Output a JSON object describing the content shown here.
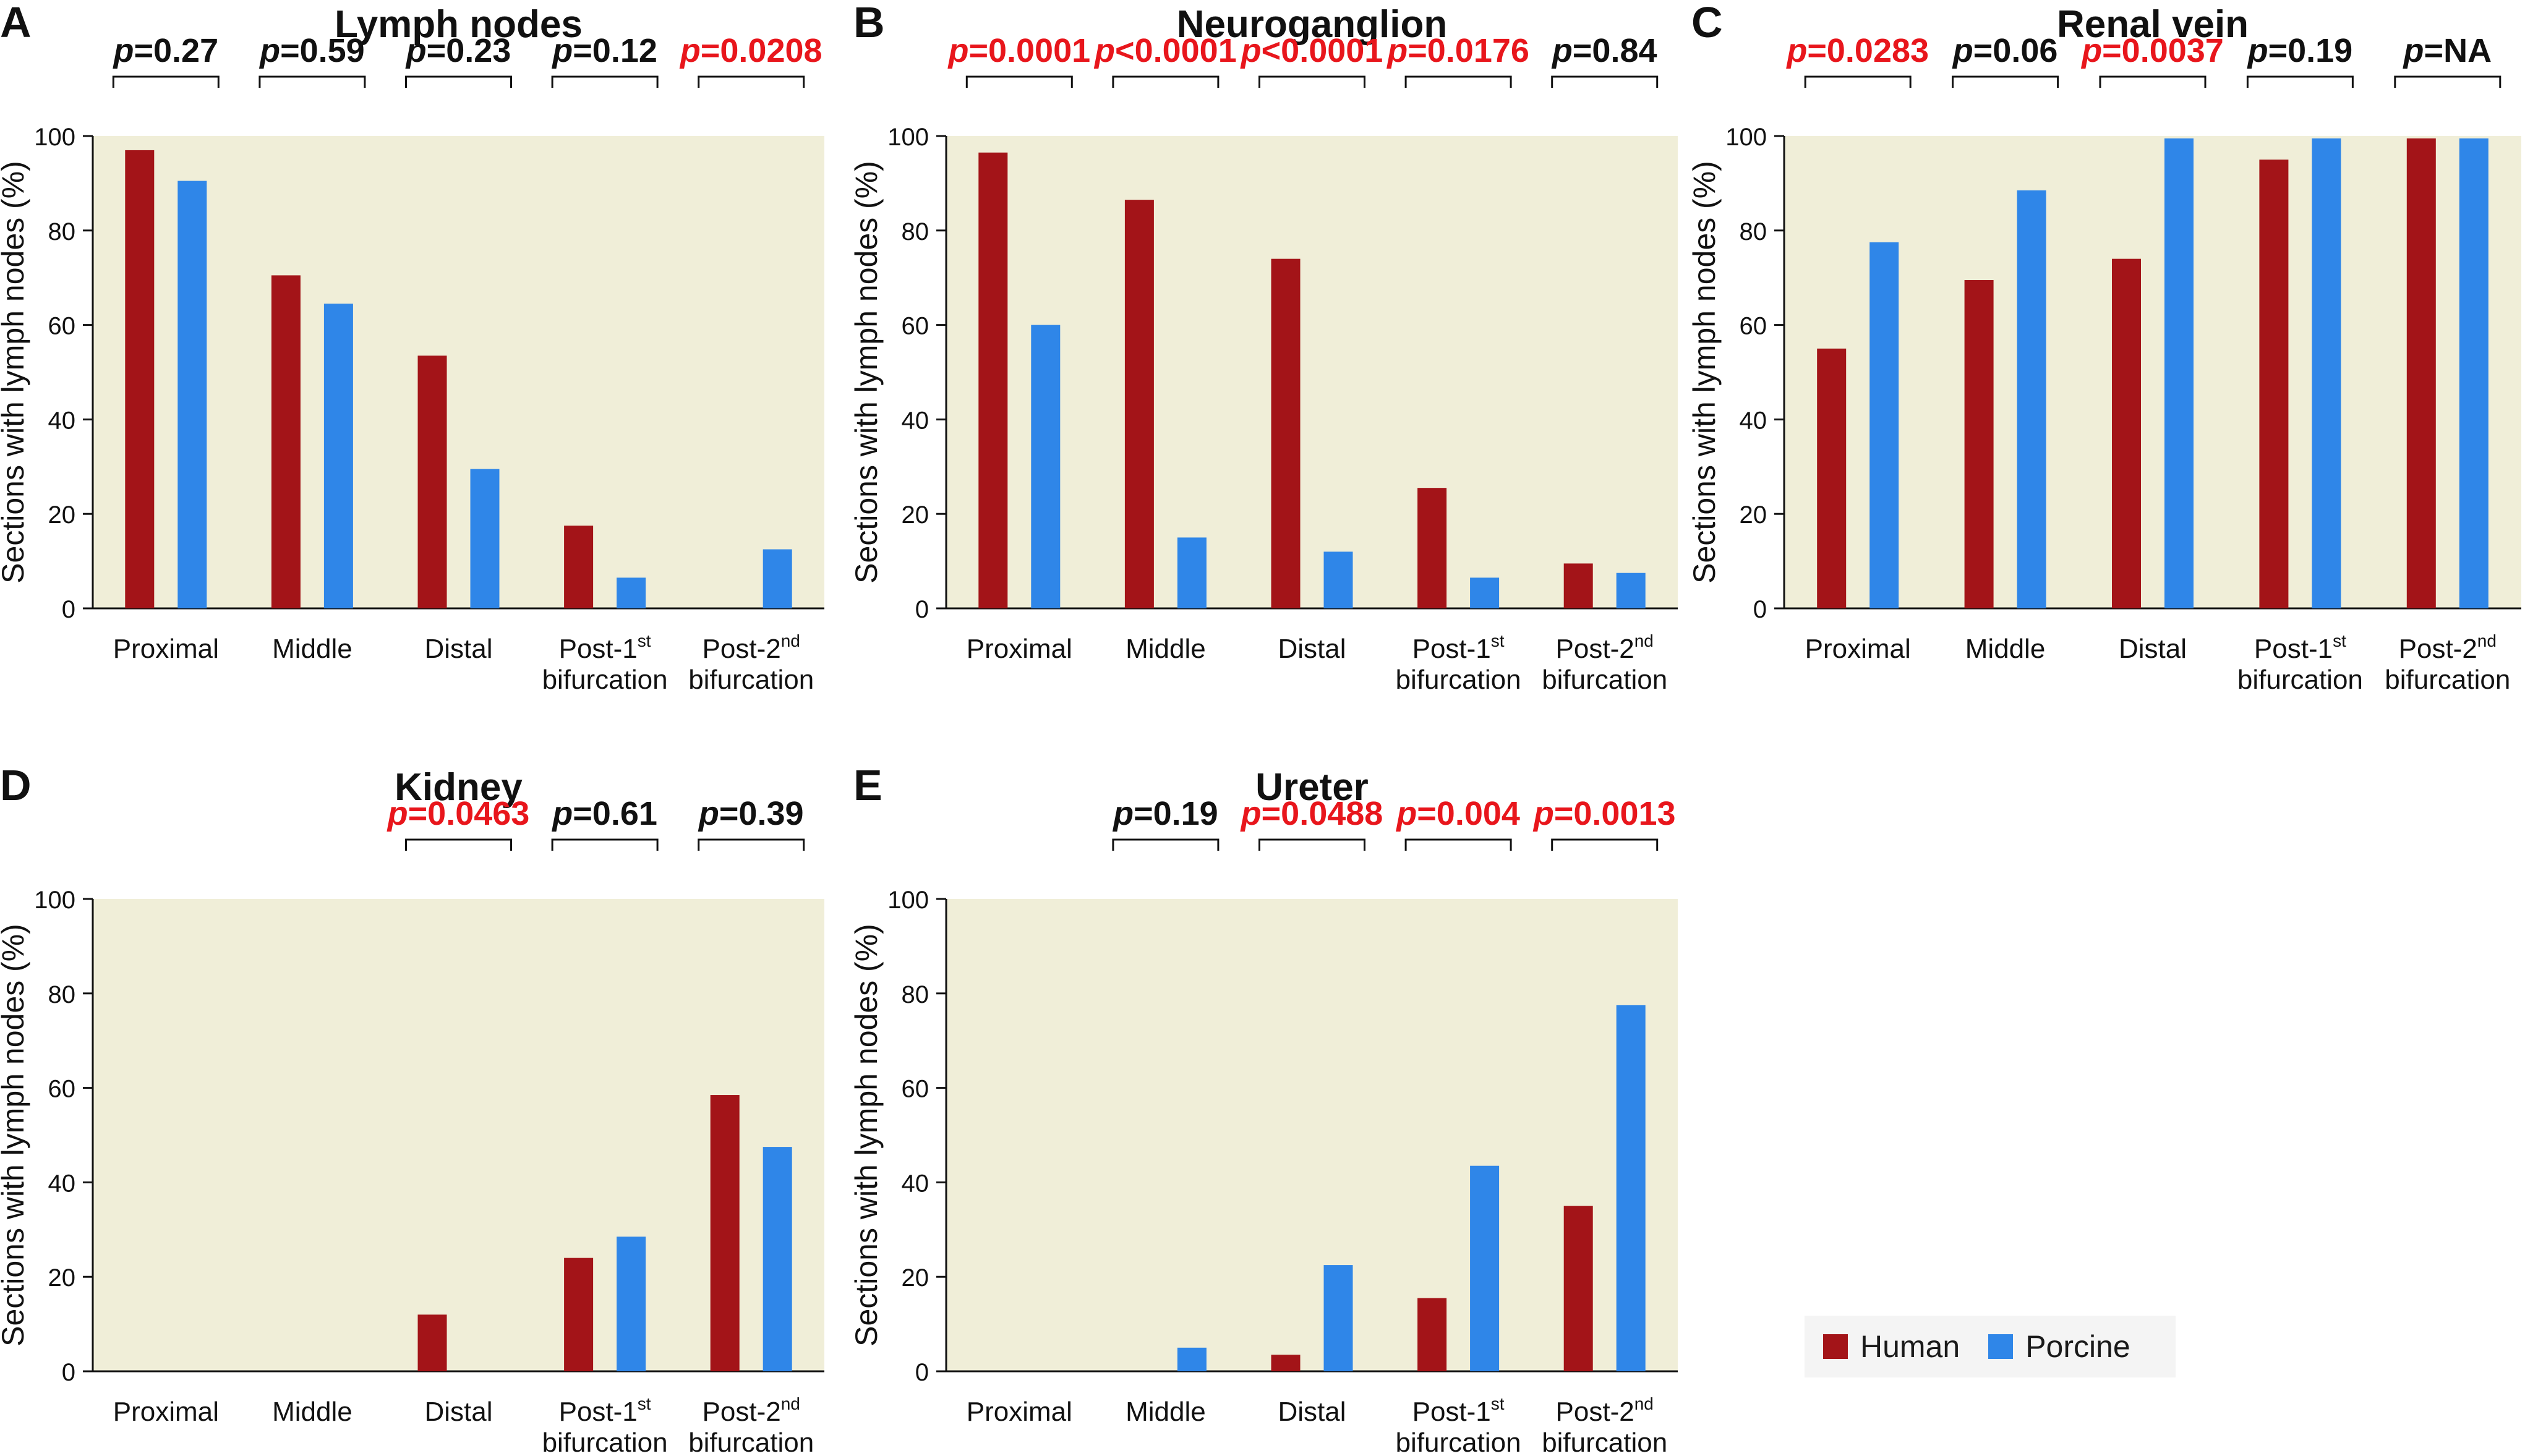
{
  "colors": {
    "human": "#a31418",
    "porcine": "#2f86e8",
    "panel_bg": "#f0eed8",
    "significant_p": "#e8161c",
    "text": "#111111"
  },
  "legend": [
    {
      "label": "Human",
      "color": "#a31418"
    },
    {
      "label": "Porcine",
      "color": "#2f86e8"
    }
  ],
  "chart_data": [
    {
      "panel_letter": "A",
      "title": "Lymph nodes",
      "type": "bar",
      "ylabel": "Sections with lymph nodes (%)",
      "ylim": [
        0,
        100
      ],
      "yticks": [
        "0",
        "20",
        "40",
        "60",
        "80",
        "100"
      ],
      "categories": [
        {
          "line1": "Proximal",
          "line2": "",
          "sup": ""
        },
        {
          "line1": "Middle",
          "line2": "",
          "sup": ""
        },
        {
          "line1": "Distal",
          "line2": "",
          "sup": ""
        },
        {
          "line1": "Post-1",
          "sup": "st",
          "line2": "bifurcation"
        },
        {
          "line1": "Post-2",
          "sup": "nd",
          "line2": "bifurcation"
        }
      ],
      "series": [
        {
          "name": "Human",
          "values": [
            97,
            70.5,
            53.5,
            17.5,
            0
          ]
        },
        {
          "name": "Porcine",
          "values": [
            90.5,
            64.5,
            29.5,
            6.5,
            12.5
          ]
        }
      ],
      "pvalues": [
        {
          "category_index": 0,
          "sign": "=",
          "value": "0.27",
          "significant": false
        },
        {
          "category_index": 1,
          "sign": "=",
          "value": "0.59",
          "significant": false
        },
        {
          "category_index": 2,
          "sign": "=",
          "value": "0.23",
          "significant": false
        },
        {
          "category_index": 3,
          "sign": "=",
          "value": "0.12",
          "significant": false
        },
        {
          "category_index": 4,
          "sign": "=",
          "value": "0.0208",
          "significant": true
        }
      ]
    },
    {
      "panel_letter": "B",
      "title": "Neuroganglion",
      "type": "bar",
      "ylabel": "Sections with lymph nodes (%)",
      "ylim": [
        0,
        100
      ],
      "yticks": [
        "0",
        "20",
        "40",
        "60",
        "80",
        "100"
      ],
      "categories": [
        {
          "line1": "Proximal",
          "line2": "",
          "sup": ""
        },
        {
          "line1": "Middle",
          "line2": "",
          "sup": ""
        },
        {
          "line1": "Distal",
          "line2": "",
          "sup": ""
        },
        {
          "line1": "Post-1",
          "sup": "st",
          "line2": "bifurcation"
        },
        {
          "line1": "Post-2",
          "sup": "nd",
          "line2": "bifurcation"
        }
      ],
      "series": [
        {
          "name": "Human",
          "values": [
            96.5,
            86.5,
            74,
            25.5,
            9.5
          ]
        },
        {
          "name": "Porcine",
          "values": [
            60,
            15,
            12,
            6.5,
            7.5
          ]
        }
      ],
      "pvalues": [
        {
          "category_index": 0,
          "sign": "=",
          "value": "0.0001",
          "significant": true
        },
        {
          "category_index": 1,
          "sign": "<",
          "value": "0.0001",
          "significant": true
        },
        {
          "category_index": 2,
          "sign": "<",
          "value": "0.0001",
          "significant": true
        },
        {
          "category_index": 3,
          "sign": "=",
          "value": "0.0176",
          "significant": true
        },
        {
          "category_index": 4,
          "sign": "=",
          "value": "0.84",
          "significant": false
        }
      ]
    },
    {
      "panel_letter": "C",
      "title": "Renal vein",
      "type": "bar",
      "ylabel": "Sections with lymph nodes (%)",
      "ylim": [
        0,
        100
      ],
      "yticks": [
        "0",
        "20",
        "40",
        "60",
        "80",
        "100"
      ],
      "categories": [
        {
          "line1": "Proximal",
          "line2": "",
          "sup": ""
        },
        {
          "line1": "Middle",
          "line2": "",
          "sup": ""
        },
        {
          "line1": "Distal",
          "line2": "",
          "sup": ""
        },
        {
          "line1": "Post-1",
          "sup": "st",
          "line2": "bifurcation"
        },
        {
          "line1": "Post-2",
          "sup": "nd",
          "line2": "bifurcation"
        }
      ],
      "series": [
        {
          "name": "Human",
          "values": [
            55,
            69.5,
            74,
            95,
            99.5
          ]
        },
        {
          "name": "Porcine",
          "values": [
            77.5,
            88.5,
            99.5,
            99.5,
            99.5
          ]
        }
      ],
      "pvalues": [
        {
          "category_index": 0,
          "sign": "=",
          "value": "0.0283",
          "significant": true
        },
        {
          "category_index": 1,
          "sign": "=",
          "value": "0.06",
          "significant": false
        },
        {
          "category_index": 2,
          "sign": "=",
          "value": "0.0037",
          "significant": true
        },
        {
          "category_index": 3,
          "sign": "=",
          "value": "0.19",
          "significant": false
        },
        {
          "category_index": 4,
          "sign": "=",
          "value": "NA",
          "significant": false
        }
      ]
    },
    {
      "panel_letter": "D",
      "title": "Kidney",
      "type": "bar",
      "ylabel": "Sections with lymph nodes (%)",
      "ylim": [
        0,
        100
      ],
      "yticks": [
        "0",
        "20",
        "40",
        "60",
        "80",
        "100"
      ],
      "categories": [
        {
          "line1": "Proximal",
          "line2": "",
          "sup": ""
        },
        {
          "line1": "Middle",
          "line2": "",
          "sup": ""
        },
        {
          "line1": "Distal",
          "line2": "",
          "sup": ""
        },
        {
          "line1": "Post-1",
          "sup": "st",
          "line2": "bifurcation"
        },
        {
          "line1": "Post-2",
          "sup": "nd",
          "line2": "bifurcation"
        }
      ],
      "series": [
        {
          "name": "Human",
          "values": [
            0,
            0,
            12,
            24,
            58.5
          ]
        },
        {
          "name": "Porcine",
          "values": [
            0,
            0,
            0,
            28.5,
            47.5
          ]
        }
      ],
      "pvalues": [
        {
          "category_index": 2,
          "sign": "=",
          "value": "0.0463",
          "significant": true
        },
        {
          "category_index": 3,
          "sign": "=",
          "value": "0.61",
          "significant": false
        },
        {
          "category_index": 4,
          "sign": "=",
          "value": "0.39",
          "significant": false
        }
      ]
    },
    {
      "panel_letter": "E",
      "title": "Ureter",
      "type": "bar",
      "ylabel": "Sections with lymph nodes (%)",
      "ylim": [
        0,
        100
      ],
      "yticks": [
        "0",
        "20",
        "40",
        "60",
        "80",
        "100"
      ],
      "categories": [
        {
          "line1": "Proximal",
          "line2": "",
          "sup": ""
        },
        {
          "line1": "Middle",
          "line2": "",
          "sup": ""
        },
        {
          "line1": "Distal",
          "line2": "",
          "sup": ""
        },
        {
          "line1": "Post-1",
          "sup": "st",
          "line2": "bifurcation"
        },
        {
          "line1": "Post-2",
          "sup": "nd",
          "line2": "bifurcation"
        }
      ],
      "series": [
        {
          "name": "Human",
          "values": [
            0,
            0,
            3.5,
            15.5,
            35
          ]
        },
        {
          "name": "Porcine",
          "values": [
            0,
            5,
            22.5,
            43.5,
            77.5
          ]
        }
      ],
      "pvalues": [
        {
          "category_index": 1,
          "sign": "=",
          "value": "0.19",
          "significant": false
        },
        {
          "category_index": 2,
          "sign": "=",
          "value": "0.0488",
          "significant": true
        },
        {
          "category_index": 3,
          "sign": "=",
          "value": "0.004",
          "significant": true
        },
        {
          "category_index": 4,
          "sign": "=",
          "value": "0.0013",
          "significant": true
        }
      ]
    }
  ]
}
